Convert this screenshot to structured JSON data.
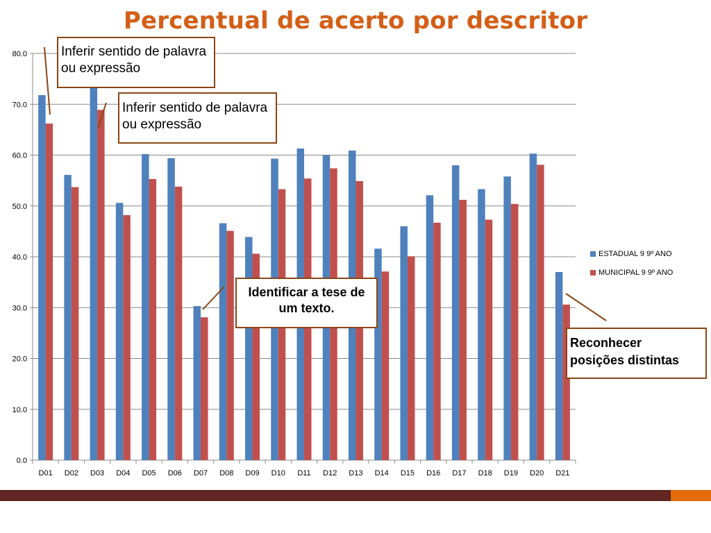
{
  "slide": {
    "title": "Percentual de acerto por descritor",
    "footer_color": "#5f2622",
    "footer_accent_color": "#e46c0a"
  },
  "chart_data": {
    "type": "bar",
    "title": "Percentual de acerto por descritor",
    "xlabel": "",
    "ylabel": "",
    "ylim": [
      0,
      80
    ],
    "yticks": [
      "0.0",
      "10.0",
      "20.0",
      "30.0",
      "40.0",
      "50.0",
      "60.0",
      "70.0",
      "80.0"
    ],
    "grid": true,
    "legend_position": "right",
    "categories": [
      "D01",
      "D02",
      "D03",
      "D04",
      "D05",
      "D06",
      "D07",
      "D08",
      "D09",
      "D10",
      "D11",
      "D12",
      "D13",
      "D14",
      "D15",
      "D16",
      "D17",
      "D18",
      "D19",
      "D20",
      "D21"
    ],
    "series": [
      {
        "name": "ESTADUAL 9 9º ANO",
        "color": "#4f81bd",
        "values": [
          71.8,
          56.1,
          73.6,
          50.6,
          60.2,
          59.4,
          30.3,
          46.6,
          43.9,
          59.3,
          61.3,
          60.0,
          60.9,
          41.6,
          46.0,
          52.1,
          58.0,
          53.3,
          55.8,
          60.3,
          37.0
        ]
      },
      {
        "name": "MUNICIPAL 9 9º ANO",
        "color": "#c0504d",
        "values": [
          66.2,
          53.7,
          68.9,
          48.2,
          55.3,
          53.8,
          28.1,
          45.1,
          40.6,
          53.3,
          55.4,
          57.4,
          54.9,
          37.1,
          40.1,
          46.7,
          51.2,
          47.3,
          50.4,
          58.1,
          30.6
        ]
      }
    ]
  },
  "callouts": {
    "c1": "Inferir sentido de palavra ou expressão",
    "c2": "Inferir sentido de palavra ou expressão",
    "c3": "Identificar a tese de um texto.",
    "c4_line1": "Reconhecer",
    "c4_line2": "posições distintas"
  },
  "callout_color": "#8b4513"
}
